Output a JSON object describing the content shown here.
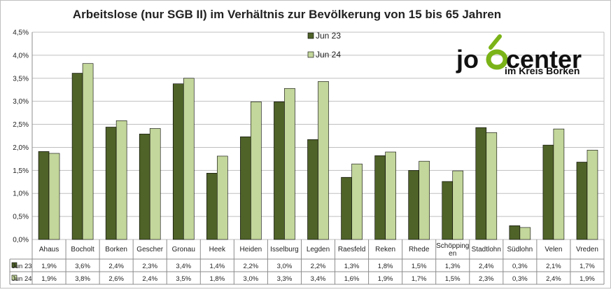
{
  "chart_data": {
    "type": "bar",
    "title": "Arbeitslose (nur SGB II) im Verhältnis zur Bevölkerung von 15 bis 65 Jahren",
    "xlabel": "",
    "ylabel": "",
    "ylim": [
      0,
      4.5
    ],
    "yticks": [
      "0,0%",
      "0,5%",
      "1,0%",
      "1,5%",
      "2,0%",
      "2,5%",
      "3,0%",
      "3,5%",
      "4,0%",
      "4,5%"
    ],
    "grid": true,
    "legend_position": "top-center",
    "categories": [
      [
        "Ahaus"
      ],
      [
        "Bocholt"
      ],
      [
        "Borken"
      ],
      [
        "Gescher"
      ],
      [
        "Gronau"
      ],
      [
        "Heek"
      ],
      [
        "Heiden"
      ],
      [
        "Isselburg"
      ],
      [
        "Legden"
      ],
      [
        "Raesfeld"
      ],
      [
        "Reken"
      ],
      [
        "Rhede"
      ],
      [
        "Schöpping",
        "en"
      ],
      [
        "Stadtlohn"
      ],
      [
        "Südlohn"
      ],
      [
        "Velen"
      ],
      [
        "Vreden"
      ]
    ],
    "series": [
      {
        "name": "Jun 23",
        "color": "#4f6228",
        "values": [
          1.91,
          3.61,
          2.44,
          2.29,
          3.38,
          1.44,
          2.23,
          2.99,
          2.17,
          1.35,
          1.82,
          1.5,
          1.26,
          2.43,
          0.3,
          2.05,
          1.68
        ],
        "labels": [
          "1,9%",
          "3,6%",
          "2,4%",
          "2,3%",
          "3,4%",
          "1,4%",
          "2,2%",
          "3,0%",
          "2,2%",
          "1,3%",
          "1,8%",
          "1,5%",
          "1,3%",
          "2,4%",
          "0,3%",
          "2,1%",
          "1,7%"
        ]
      },
      {
        "name": "Jun 24",
        "color": "#c3d69b",
        "values": [
          1.87,
          3.82,
          2.58,
          2.41,
          3.5,
          1.81,
          2.99,
          3.28,
          3.43,
          1.64,
          1.9,
          1.7,
          1.49,
          2.32,
          0.26,
          2.4,
          1.94
        ],
        "labels": [
          "1,9%",
          "3,8%",
          "2,6%",
          "2,4%",
          "3,5%",
          "1,8%",
          "3,0%",
          "3,3%",
          "3,4%",
          "1,6%",
          "1,9%",
          "1,7%",
          "1,5%",
          "2,3%",
          "0,3%",
          "2,4%",
          "1,9%"
        ]
      }
    ]
  },
  "logo": {
    "word_left": "jo",
    "word_right": "center",
    "subtitle": "im Kreis Borken",
    "accent_color": "#7ab317"
  }
}
